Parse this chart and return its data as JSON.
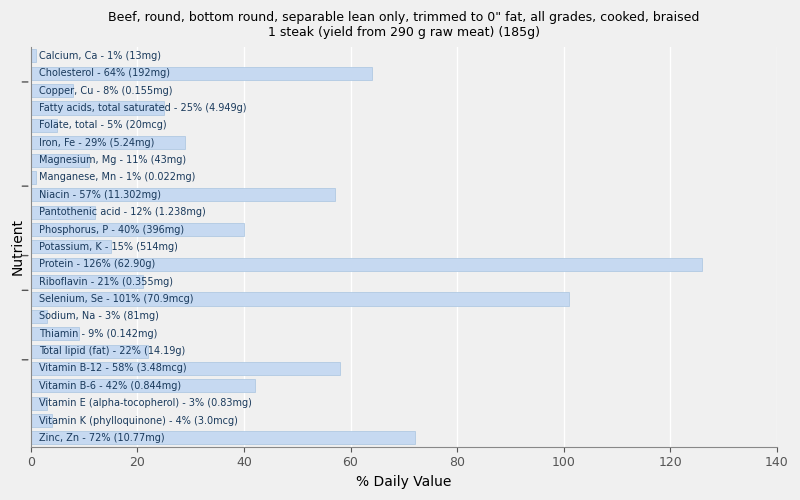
{
  "title": "Beef, round, bottom round, separable lean only, trimmed to 0\" fat, all grades, cooked, braised\n1 steak (yield from 290 g raw meat) (185g)",
  "xlabel": "% Daily Value",
  "ylabel": "Nutrient",
  "background_color": "#f0f0f0",
  "plot_bg_color": "#f0f0f0",
  "bar_color": "#c6d9f1",
  "bar_edge_color": "#a8c4e0",
  "text_color": "#1a3a5c",
  "grid_color": "#ffffff",
  "xlim": [
    0,
    140
  ],
  "xticks": [
    0,
    20,
    40,
    60,
    80,
    100,
    120,
    140
  ],
  "nutrients": [
    {
      "label": "Calcium, Ca - 1% (13mg)",
      "value": 1
    },
    {
      "label": "Cholesterol - 64% (192mg)",
      "value": 64
    },
    {
      "label": "Copper, Cu - 8% (0.155mg)",
      "value": 8
    },
    {
      "label": "Fatty acids, total saturated - 25% (4.949g)",
      "value": 25
    },
    {
      "label": "Folate, total - 5% (20mcg)",
      "value": 5
    },
    {
      "label": "Iron, Fe - 29% (5.24mg)",
      "value": 29
    },
    {
      "label": "Magnesium, Mg - 11% (43mg)",
      "value": 11
    },
    {
      "label": "Manganese, Mn - 1% (0.022mg)",
      "value": 1
    },
    {
      "label": "Niacin - 57% (11.302mg)",
      "value": 57
    },
    {
      "label": "Pantothenic acid - 12% (1.238mg)",
      "value": 12
    },
    {
      "label": "Phosphorus, P - 40% (396mg)",
      "value": 40
    },
    {
      "label": "Potassium, K - 15% (514mg)",
      "value": 15
    },
    {
      "label": "Protein - 126% (62.90g)",
      "value": 126
    },
    {
      "label": "Riboflavin - 21% (0.355mg)",
      "value": 21
    },
    {
      "label": "Selenium, Se - 101% (70.9mcg)",
      "value": 101
    },
    {
      "label": "Sodium, Na - 3% (81mg)",
      "value": 3
    },
    {
      "label": "Thiamin - 9% (0.142mg)",
      "value": 9
    },
    {
      "label": "Total lipid (fat) - 22% (14.19g)",
      "value": 22
    },
    {
      "label": "Vitamin B-12 - 58% (3.48mcg)",
      "value": 58
    },
    {
      "label": "Vitamin B-6 - 42% (0.844mg)",
      "value": 42
    },
    {
      "label": "Vitamin E (alpha-tocopherol) - 3% (0.83mg)",
      "value": 3
    },
    {
      "label": "Vitamin K (phylloquinone) - 4% (3.0mcg)",
      "value": 4
    },
    {
      "label": "Zinc, Zn - 72% (10.77mg)",
      "value": 72
    }
  ],
  "group_tick_positions": [
    1.5,
    8.5,
    12.5,
    14.5,
    18.5
  ]
}
